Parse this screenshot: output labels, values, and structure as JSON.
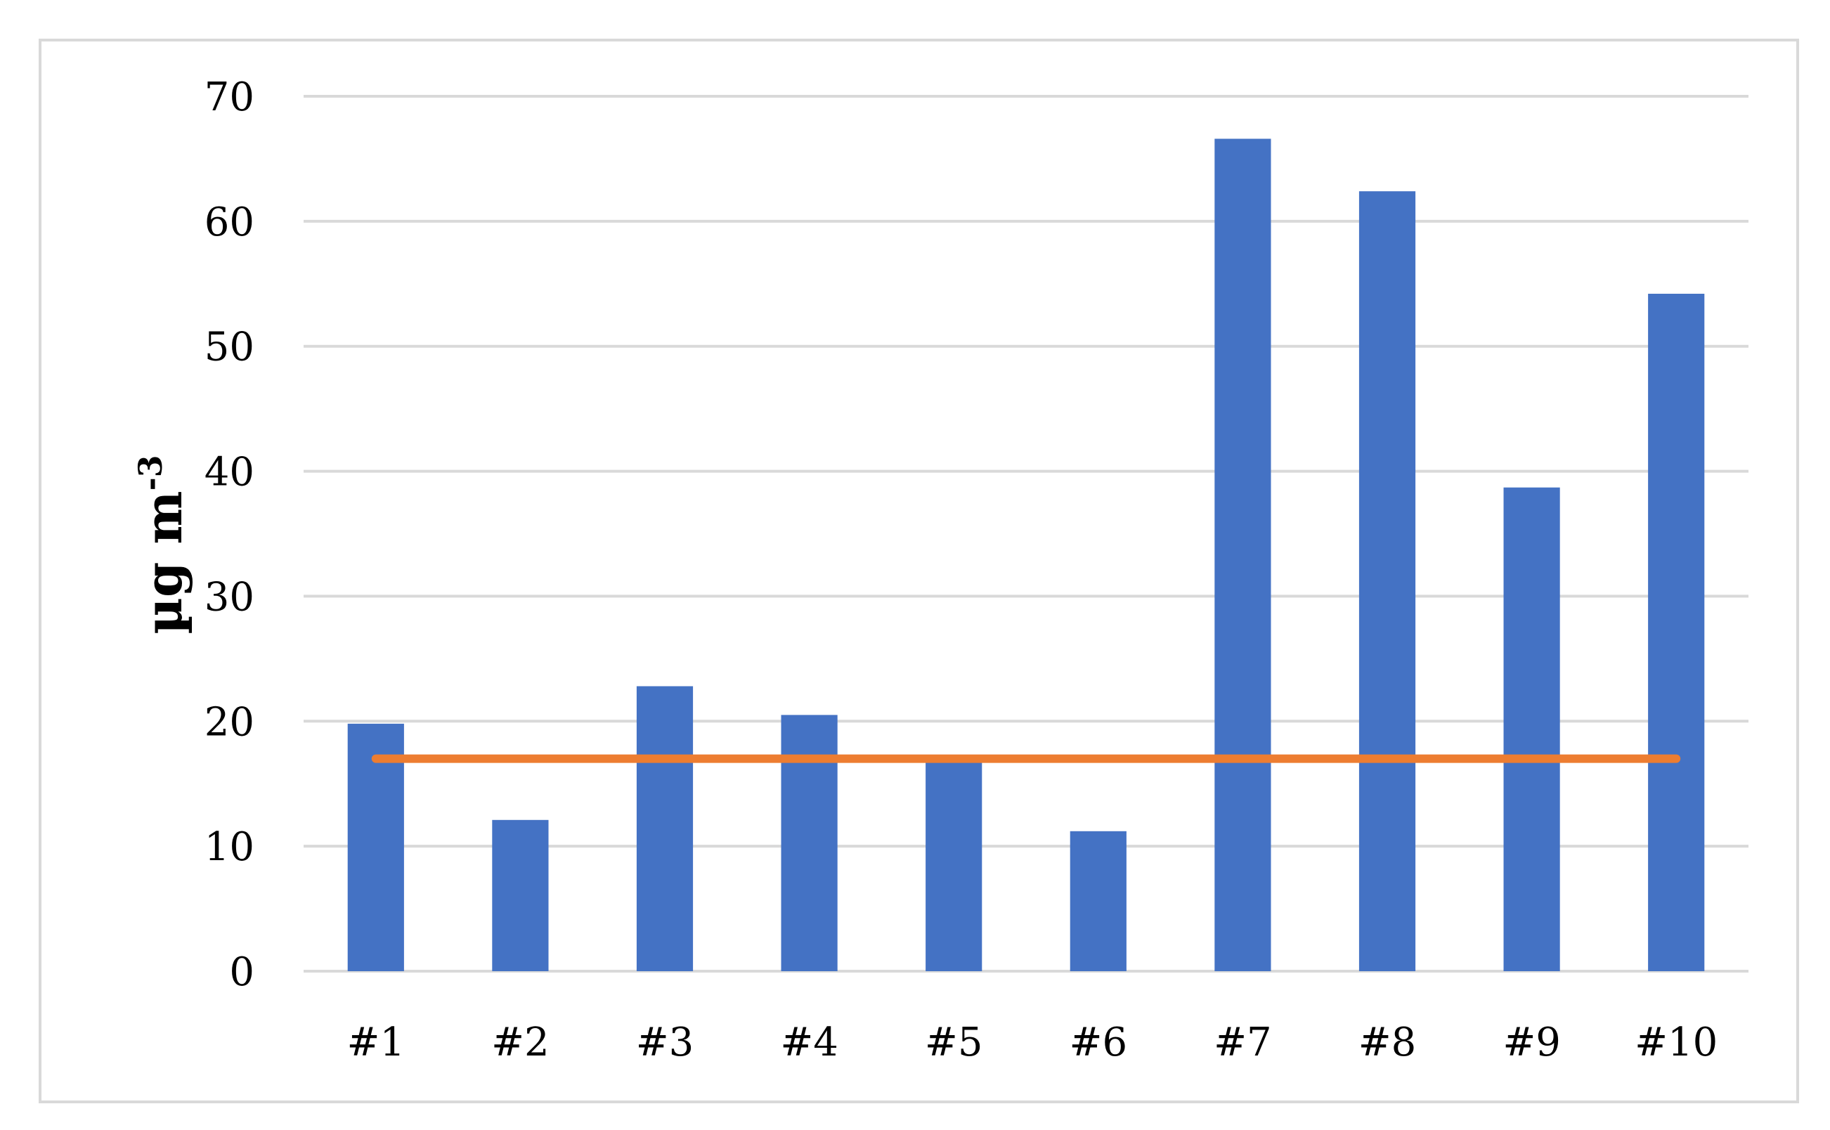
{
  "chart_data": {
    "type": "bar",
    "title": "",
    "xlabel": "",
    "ylabel": "µg m",
    "ylabel_superscript": "-3",
    "categories": [
      "#1",
      "#2",
      "#3",
      "#4",
      "#5",
      "#6",
      "#7",
      "#8",
      "#9",
      "#10"
    ],
    "series": [
      {
        "values": [
          19.8,
          12.1,
          22.8,
          20.5,
          17.0,
          11.2,
          66.6,
          62.4,
          38.7,
          54.2
        ]
      }
    ],
    "reference_line": {
      "value": 17
    },
    "yticks": [
      0,
      10,
      20,
      30,
      40,
      50,
      60,
      70
    ],
    "ylim": [
      0,
      70
    ],
    "grid": true,
    "legend": "none",
    "colors": {
      "bar": "#4472c4",
      "reference_line": "#ed7d31",
      "grid": "#d9d9d9"
    }
  }
}
